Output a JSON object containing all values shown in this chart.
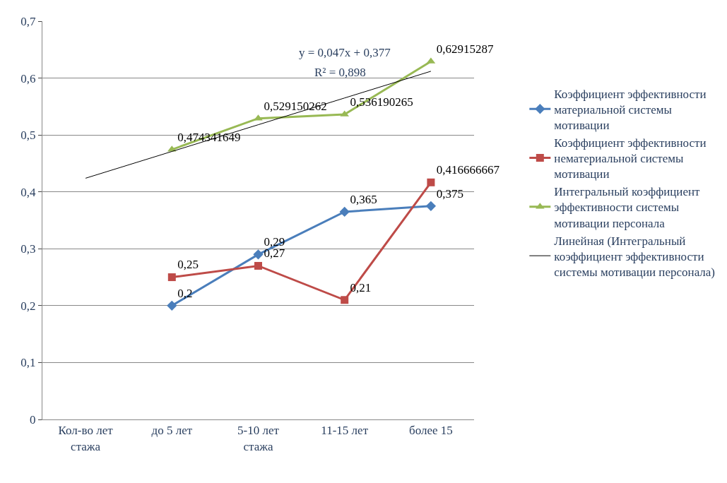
{
  "chart_data": {
    "type": "line",
    "categories": [
      "Кол-во лет стажа",
      "до 5 лет",
      "5-10 лет стажа",
      "11-15 лет",
      "более 15"
    ],
    "series": [
      {
        "name": "Коэффициент эффективности материальной системы мотивации",
        "color": "#4a7ebb",
        "marker": "diamond",
        "values": [
          null,
          0.2,
          0.29,
          0.365,
          0.375
        ],
        "value_labels": [
          null,
          "0,2",
          "0,29",
          "0,365",
          "0,375"
        ]
      },
      {
        "name": "Коэффициент эффективности нематериальной системы мотивации",
        "color": "#be4b48",
        "marker": "square",
        "values": [
          null,
          0.25,
          0.27,
          0.21,
          0.416666667
        ],
        "value_labels": [
          null,
          "0,25",
          "0,27",
          "0,21",
          "0,416666667"
        ]
      },
      {
        "name": "Интегральный коэффициент эффективности системы мотивации персонала",
        "color": "#98b954",
        "marker": "triangle",
        "values": [
          null,
          0.474341649,
          0.529150262,
          0.536190265,
          0.62915287
        ],
        "value_labels": [
          null,
          "0,474341649",
          "0,529150262",
          "0,536190265",
          "0,62915287"
        ]
      },
      {
        "name": "Линейная (Интегральный коэффициент эффективности системы мотивации персонала)",
        "color": "#000000",
        "marker": "none",
        "values": [
          0.424,
          0.471,
          0.518,
          0.565,
          0.612
        ]
      }
    ],
    "ylim": [
      0,
      0.7
    ],
    "yticks": [
      {
        "value": 0,
        "label": "0"
      },
      {
        "value": 0.1,
        "label": "0,1"
      },
      {
        "value": 0.2,
        "label": "0,2"
      },
      {
        "value": 0.3,
        "label": "0,3"
      },
      {
        "value": 0.4,
        "label": "0,4"
      },
      {
        "value": 0.5,
        "label": "0,5"
      },
      {
        "value": 0.6,
        "label": "0,6"
      },
      {
        "value": 0.7,
        "label": "0,7"
      }
    ],
    "grid": "y",
    "legend": "right",
    "annotations": [
      "y = 0,047x + 0,377",
      "R² = 0,898"
    ]
  }
}
